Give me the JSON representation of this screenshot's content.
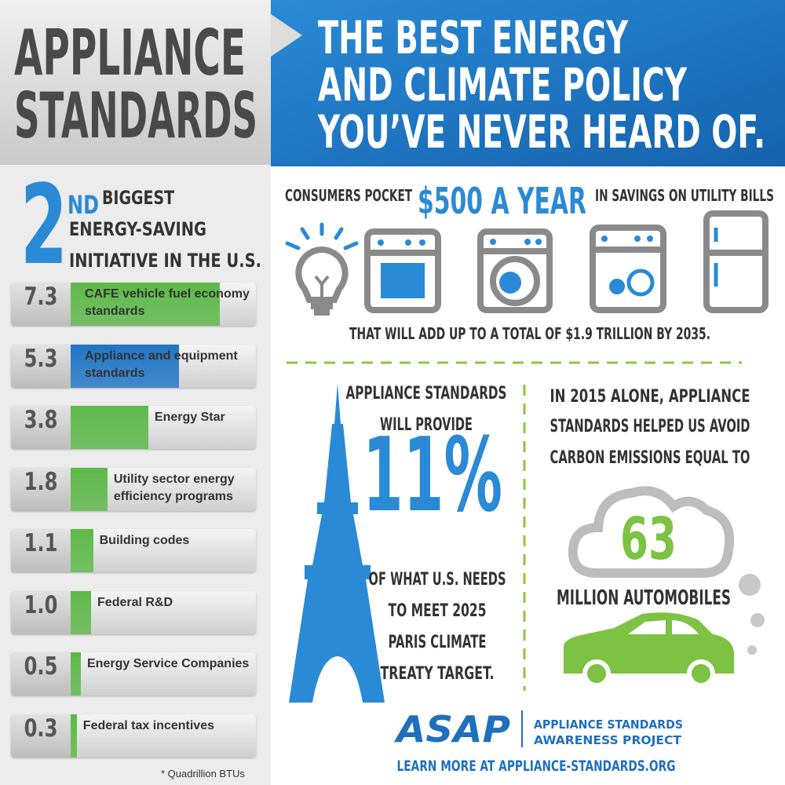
{
  "header": {
    "title": [
      "APPLIANCE",
      "STANDARDS"
    ],
    "headline": [
      "THE BEST ENERGY",
      "AND CLIMATE POLICY",
      "YOU’VE NEVER HEARD OF."
    ]
  },
  "rank": {
    "number": "2",
    "suffix": "ND",
    "lines": [
      "BIGGEST",
      "ENERGY-SAVING",
      "INITIATIVE IN THE U.S."
    ]
  },
  "chart_data": {
    "type": "bar",
    "categories": [
      "CAFE vehicle fuel economy standards",
      "Appliance and equipment standards",
      "Energy Star",
      "Utility sector energy efficiency programs",
      "Building codes",
      "Federal R&D",
      "Energy Service Companies",
      "Federal tax incentives"
    ],
    "values": [
      7.3,
      5.3,
      3.8,
      1.8,
      1.1,
      1.0,
      0.5,
      0.3
    ],
    "value_labels": [
      "7.3",
      "5.3",
      "3.8",
      "1.8",
      "1.1",
      "1.0",
      "0.5",
      "0.3"
    ],
    "colors": [
      "#5cb847",
      "#1f75c6",
      "#5cb847",
      "#5cb847",
      "#5cb847",
      "#5cb847",
      "#5cb847",
      "#5cb847"
    ],
    "footnote": "* Quadrillion BTUs"
  },
  "savings": {
    "prefix": "CONSUMERS POCKET",
    "highlight": "$500 A YEAR",
    "suffix": "IN SAVINGS ON UTILITY BILLS",
    "total": "THAT WILL ADD UP TO A TOTAL OF $1.9 TRILLION BY 2035."
  },
  "paris": {
    "top": [
      "APPLIANCE STANDARDS",
      "WILL PROVIDE"
    ],
    "stat": "11%",
    "bottom": [
      "OF WHAT U.S. NEEDS",
      "TO MEET 2025",
      "PARIS CLIMATE",
      "TREATY TARGET."
    ]
  },
  "carbon": {
    "lines": [
      "IN 2015 ALONE, APPLIANCE",
      "STANDARDS HELPED US AVOID",
      "CARBON EMISSIONS EQUAL TO"
    ],
    "stat": "63",
    "unit": "MILLION AUTOMOBILES"
  },
  "footer": {
    "logo": "ASAP",
    "org": [
      "APPLIANCE STANDARDS",
      "AWARENESS PROJECT"
    ],
    "link": "LEARN MORE AT APPLIANCE-STANDARDS.ORG"
  }
}
